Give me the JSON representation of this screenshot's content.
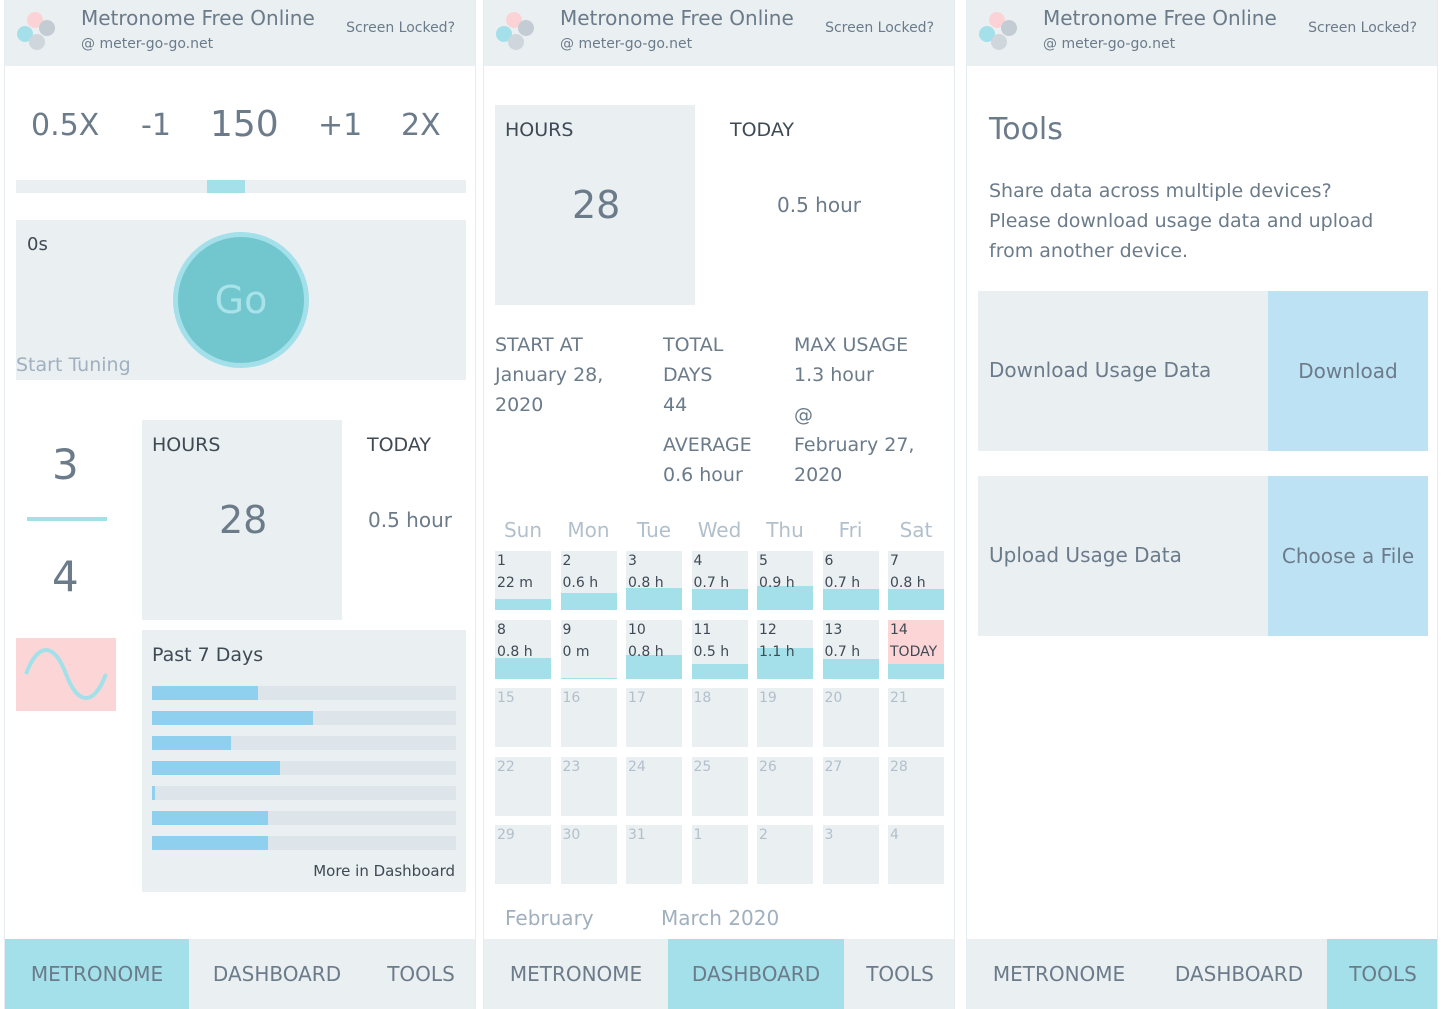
{
  "app": {
    "title": "Metronome Free Online",
    "site": "@ meter-go-go.net",
    "screen_locked": "Screen Locked?",
    "logo_colors": [
      "#fbd3d6",
      "#a3e0ea",
      "#cfd6dc",
      "#c4ccd3"
    ]
  },
  "tabs": [
    "METRONOME",
    "DASHBOARD",
    "TOOLS"
  ],
  "colors": {
    "accent": "#a3e0ea",
    "panel": "#eaeff2",
    "today": "#fcd6d6",
    "bar": "#8fd0ee",
    "text": "#6b7b8a"
  },
  "metronome": {
    "tempo_controls": [
      "0.5X",
      "-1",
      "150",
      "+1",
      "2X"
    ],
    "tempo_slider_level": 0.47,
    "tuner_time": "0s",
    "go_label": "Go",
    "start_tuning": "Start Tuning",
    "beats_per_bar": "3",
    "beat_unit": "4",
    "sound_icon": "sine-wave-icon",
    "hours_label": "HOURS",
    "hours_value": "28",
    "today_label": "TODAY",
    "today_value": "0.5 hour",
    "past_title": "Past 7 Days",
    "past_fractions": [
      0.35,
      0.53,
      0.26,
      0.42,
      0.01,
      0.38,
      0.38
    ],
    "more_link": "More in Dashboard"
  },
  "dashboard": {
    "hours_label": "HOURS",
    "hours_value": "28",
    "today_label": "TODAY",
    "today_value": "0.5 hour",
    "start_label": "START AT",
    "start_value_1": "January 28,",
    "start_value_2": "2020",
    "total_label_1": "TOTAL",
    "total_label_2": "DAYS",
    "total_value": "44",
    "average_label": "AVERAGE",
    "average_value": "0.6 hour",
    "max_label": "MAX USAGE",
    "max_value": "1.3 hour",
    "max_at": "@",
    "max_date_1": "February 27,",
    "max_date_2": "2020",
    "weekdays": [
      "Sun",
      "Mon",
      "Tue",
      "Wed",
      "Thu",
      "Fri",
      "Sat"
    ],
    "calendar": [
      {
        "day": "1",
        "val": "22 m",
        "fill": 0.18,
        "state": "past"
      },
      {
        "day": "2",
        "val": "0.6 h",
        "fill": 0.28,
        "state": "past"
      },
      {
        "day": "3",
        "val": "0.8 h",
        "fill": 0.38,
        "state": "past"
      },
      {
        "day": "4",
        "val": "0.7 h",
        "fill": 0.35,
        "state": "past"
      },
      {
        "day": "5",
        "val": "0.9 h",
        "fill": 0.4,
        "state": "past"
      },
      {
        "day": "6",
        "val": "0.7 h",
        "fill": 0.35,
        "state": "past"
      },
      {
        "day": "7",
        "val": "0.8 h",
        "fill": 0.35,
        "state": "past"
      },
      {
        "day": "8",
        "val": "0.8 h",
        "fill": 0.36,
        "state": "past"
      },
      {
        "day": "9",
        "val": "0 m",
        "fill": 0.02,
        "state": "past"
      },
      {
        "day": "10",
        "val": "0.8 h",
        "fill": 0.4,
        "state": "past"
      },
      {
        "day": "11",
        "val": "0.5 h",
        "fill": 0.26,
        "state": "past"
      },
      {
        "day": "12",
        "val": "1.1 h",
        "fill": 0.52,
        "state": "past"
      },
      {
        "day": "13",
        "val": "0.7 h",
        "fill": 0.34,
        "state": "past"
      },
      {
        "day": "14",
        "val": "TODAY",
        "fill": 0.26,
        "state": "today"
      },
      {
        "day": "15",
        "val": "",
        "fill": 0,
        "state": "future"
      },
      {
        "day": "16",
        "val": "",
        "fill": 0,
        "state": "future"
      },
      {
        "day": "17",
        "val": "",
        "fill": 0,
        "state": "future"
      },
      {
        "day": "18",
        "val": "",
        "fill": 0,
        "state": "future"
      },
      {
        "day": "19",
        "val": "",
        "fill": 0,
        "state": "future"
      },
      {
        "day": "20",
        "val": "",
        "fill": 0,
        "state": "future"
      },
      {
        "day": "21",
        "val": "",
        "fill": 0,
        "state": "future"
      },
      {
        "day": "22",
        "val": "",
        "fill": 0,
        "state": "future"
      },
      {
        "day": "23",
        "val": "",
        "fill": 0,
        "state": "future"
      },
      {
        "day": "24",
        "val": "",
        "fill": 0,
        "state": "future"
      },
      {
        "day": "25",
        "val": "",
        "fill": 0,
        "state": "future"
      },
      {
        "day": "26",
        "val": "",
        "fill": 0,
        "state": "future"
      },
      {
        "day": "27",
        "val": "",
        "fill": 0,
        "state": "future"
      },
      {
        "day": "28",
        "val": "",
        "fill": 0,
        "state": "future"
      },
      {
        "day": "29",
        "val": "",
        "fill": 0,
        "state": "future"
      },
      {
        "day": "30",
        "val": "",
        "fill": 0,
        "state": "future"
      },
      {
        "day": "31",
        "val": "",
        "fill": 0,
        "state": "future"
      },
      {
        "day": "1",
        "val": "",
        "fill": 0,
        "state": "future"
      },
      {
        "day": "2",
        "val": "",
        "fill": 0,
        "state": "future"
      },
      {
        "day": "3",
        "val": "",
        "fill": 0,
        "state": "future"
      },
      {
        "day": "4",
        "val": "",
        "fill": 0,
        "state": "future"
      }
    ],
    "prev_month": "February",
    "next_month": "March 2020"
  },
  "tools": {
    "title": "Tools",
    "desc_1": "Share data across multiple devices?",
    "desc_2": "Please download usage data and upload",
    "desc_3": "from another device.",
    "download_label": "Download Usage Data",
    "download_button": "Download",
    "upload_label": "Upload Usage Data",
    "upload_button": "Choose a File"
  }
}
